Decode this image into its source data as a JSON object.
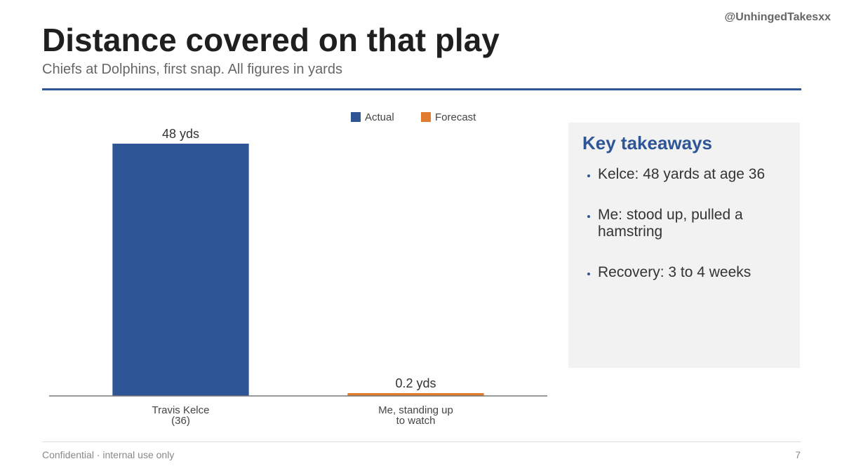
{
  "handle": "@UnhingedTakesxx",
  "chart_data": {
    "type": "bar",
    "title": "Distance covered on that play",
    "subtitle": "Chiefs at Dolphins, first snap. All figures in yards",
    "categories": [
      "Travis Kelce\n(36)",
      "Me, standing up\nto watch"
    ],
    "series": [
      {
        "name": "Actual",
        "color": "#2e5596",
        "values": [
          48,
          null
        ],
        "value_labels": [
          "48 yds",
          null
        ]
      },
      {
        "name": "Forecast",
        "color": "#e07b30",
        "values": [
          null,
          0.2
        ],
        "value_labels": [
          null,
          "0.2 yds"
        ]
      }
    ],
    "ylim": [
      0,
      50
    ],
    "legend": "top"
  },
  "takeaways": {
    "title": "Key takeaways",
    "items": [
      "Kelce: 48 yards at age 36",
      "Me: stood up, pulled a hamstring",
      "Recovery: 3 to 4 weeks"
    ]
  },
  "footer": {
    "text": "Confidential · internal use only",
    "page": 7
  }
}
